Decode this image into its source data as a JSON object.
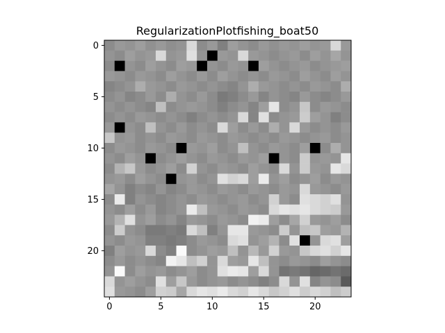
{
  "chart_data": {
    "type": "heatmap",
    "title": "RegularizationPlotfishing_boat50",
    "xlabel": "",
    "ylabel": "",
    "colormap": "gray",
    "rows": 25,
    "cols": 24,
    "xlim": [
      -0.5,
      23.5
    ],
    "ylim": [
      24.5,
      -0.5
    ],
    "x_ticks": [
      0,
      5,
      10,
      15,
      20
    ],
    "y_ticks": [
      0,
      5,
      10,
      15,
      20
    ],
    "grid": false,
    "values": [
      [
        0.55,
        0.6,
        0.58,
        0.62,
        0.57,
        0.6,
        0.56,
        0.58,
        0.85,
        0.55,
        0.6,
        0.5,
        0.62,
        0.58,
        0.55,
        0.6,
        0.57,
        0.6,
        0.58,
        0.62,
        0.58,
        0.6,
        0.85,
        0.6
      ],
      [
        0.58,
        0.55,
        0.62,
        0.58,
        0.6,
        0.85,
        0.58,
        0.6,
        0.88,
        0.58,
        0.0,
        0.6,
        0.58,
        0.85,
        0.6,
        0.58,
        0.55,
        0.58,
        0.6,
        0.55,
        0.62,
        0.58,
        0.65,
        0.58
      ],
      [
        0.55,
        0.0,
        0.58,
        0.55,
        0.62,
        0.58,
        0.55,
        0.62,
        0.6,
        0.0,
        0.58,
        0.55,
        0.6,
        0.58,
        0.0,
        0.62,
        0.58,
        0.55,
        0.58,
        0.6,
        0.55,
        0.58,
        0.6,
        0.62
      ],
      [
        0.6,
        0.58,
        0.55,
        0.6,
        0.58,
        0.55,
        0.62,
        0.58,
        0.55,
        0.6,
        0.55,
        0.62,
        0.58,
        0.55,
        0.58,
        0.55,
        0.6,
        0.58,
        0.55,
        0.62,
        0.58,
        0.55,
        0.62,
        0.58
      ],
      [
        0.52,
        0.55,
        0.58,
        0.68,
        0.6,
        0.58,
        0.55,
        0.6,
        0.58,
        0.55,
        0.58,
        0.55,
        0.52,
        0.58,
        0.68,
        0.6,
        0.58,
        0.55,
        0.58,
        0.55,
        0.6,
        0.58,
        0.55,
        0.68
      ],
      [
        0.55,
        0.58,
        0.52,
        0.55,
        0.6,
        0.55,
        0.68,
        0.58,
        0.55,
        0.6,
        0.55,
        0.48,
        0.5,
        0.55,
        0.6,
        0.52,
        0.58,
        0.55,
        0.52,
        0.6,
        0.55,
        0.52,
        0.55,
        0.6
      ],
      [
        0.58,
        0.55,
        0.58,
        0.55,
        0.52,
        0.75,
        0.55,
        0.58,
        0.6,
        0.58,
        0.55,
        0.5,
        0.55,
        0.58,
        0.52,
        0.62,
        0.9,
        0.55,
        0.58,
        0.78,
        0.55,
        0.6,
        0.58,
        0.55
      ],
      [
        0.55,
        0.58,
        0.55,
        0.6,
        0.58,
        0.55,
        0.58,
        0.55,
        0.5,
        0.55,
        0.58,
        0.55,
        0.58,
        0.85,
        0.52,
        0.88,
        0.55,
        0.58,
        0.6,
        0.8,
        0.62,
        0.58,
        0.5,
        0.55
      ],
      [
        0.6,
        0.0,
        0.58,
        0.55,
        0.75,
        0.58,
        0.55,
        0.6,
        0.55,
        0.58,
        0.55,
        0.85,
        0.62,
        0.55,
        0.6,
        0.55,
        0.68,
        0.58,
        0.85,
        0.6,
        0.55,
        0.58,
        0.55,
        0.6
      ],
      [
        0.78,
        0.58,
        0.6,
        0.55,
        0.58,
        0.55,
        0.6,
        0.58,
        0.55,
        0.6,
        0.58,
        0.55,
        0.6,
        0.58,
        0.55,
        0.58,
        0.55,
        0.6,
        0.58,
        0.55,
        0.58,
        0.6,
        0.55,
        0.58
      ],
      [
        0.55,
        0.6,
        0.58,
        0.55,
        0.6,
        0.58,
        0.55,
        0.0,
        0.6,
        0.58,
        0.62,
        0.55,
        0.58,
        0.75,
        0.58,
        0.55,
        0.6,
        0.58,
        0.55,
        0.62,
        0.0,
        0.55,
        0.68,
        0.58
      ],
      [
        0.58,
        0.55,
        0.62,
        0.58,
        0.0,
        0.55,
        0.58,
        0.62,
        0.58,
        0.55,
        0.6,
        0.58,
        0.55,
        0.6,
        0.58,
        0.62,
        0.0,
        0.58,
        0.55,
        0.8,
        0.58,
        0.6,
        0.58,
        0.9
      ],
      [
        0.55,
        0.7,
        0.78,
        0.6,
        0.55,
        0.58,
        0.62,
        0.55,
        0.82,
        0.58,
        0.55,
        0.6,
        0.58,
        0.55,
        0.62,
        0.58,
        0.55,
        0.85,
        0.58,
        0.8,
        0.6,
        0.58,
        0.9,
        0.85
      ],
      [
        0.58,
        0.6,
        0.55,
        0.62,
        0.58,
        0.55,
        0.0,
        0.58,
        0.6,
        0.55,
        0.58,
        0.88,
        0.82,
        0.85,
        0.62,
        0.92,
        0.58,
        0.62,
        0.55,
        0.58,
        0.62,
        0.55,
        0.6,
        0.58
      ],
      [
        0.65,
        0.58,
        0.5,
        0.55,
        0.52,
        0.58,
        0.52,
        0.55,
        0.6,
        0.58,
        0.55,
        0.6,
        0.58,
        0.55,
        0.6,
        0.58,
        0.55,
        0.6,
        0.58,
        0.85,
        0.6,
        0.58,
        0.55,
        0.6
      ],
      [
        0.55,
        0.92,
        0.5,
        0.58,
        0.55,
        0.52,
        0.55,
        0.58,
        0.55,
        0.6,
        0.58,
        0.55,
        0.58,
        0.6,
        0.55,
        0.58,
        0.82,
        0.6,
        0.55,
        0.88,
        0.85,
        0.82,
        0.88,
        0.58
      ],
      [
        0.58,
        0.55,
        0.62,
        0.55,
        0.6,
        0.52,
        0.55,
        0.58,
        0.92,
        0.75,
        0.6,
        0.58,
        0.55,
        0.6,
        0.58,
        0.55,
        0.85,
        0.9,
        0.88,
        0.9,
        0.85,
        0.82,
        0.8,
        0.6
      ],
      [
        0.6,
        0.7,
        0.88,
        0.58,
        0.62,
        0.55,
        0.58,
        0.52,
        0.6,
        0.58,
        0.55,
        0.6,
        0.58,
        0.55,
        0.95,
        0.92,
        0.62,
        0.55,
        0.65,
        0.82,
        0.6,
        0.58,
        0.62,
        0.55
      ],
      [
        0.55,
        0.8,
        0.58,
        0.55,
        0.48,
        0.48,
        0.5,
        0.48,
        0.85,
        0.75,
        0.5,
        0.58,
        0.9,
        0.9,
        0.6,
        0.58,
        0.55,
        0.8,
        0.58,
        0.75,
        0.78,
        0.62,
        0.6,
        0.7
      ],
      [
        0.58,
        0.55,
        0.6,
        0.58,
        0.5,
        0.5,
        0.48,
        0.5,
        0.55,
        0.6,
        0.58,
        0.55,
        0.85,
        0.88,
        0.58,
        0.62,
        0.7,
        0.55,
        0.88,
        0.0,
        0.58,
        0.85,
        0.88,
        0.62
      ],
      [
        0.5,
        0.62,
        0.58,
        0.6,
        0.85,
        0.55,
        0.5,
        0.98,
        0.55,
        0.58,
        0.62,
        0.6,
        0.75,
        0.58,
        0.72,
        0.6,
        0.82,
        0.6,
        0.58,
        0.78,
        0.85,
        0.88,
        0.82,
        0.9
      ],
      [
        0.55,
        0.6,
        0.55,
        0.58,
        0.55,
        0.52,
        0.95,
        0.9,
        0.75,
        0.82,
        0.58,
        0.85,
        0.62,
        0.6,
        0.9,
        0.75,
        0.58,
        0.55,
        0.6,
        0.58,
        0.55,
        0.62,
        0.58,
        0.55
      ],
      [
        0.58,
        0.98,
        0.55,
        0.62,
        0.58,
        0.6,
        0.55,
        0.58,
        0.62,
        0.55,
        0.58,
        0.88,
        0.92,
        0.9,
        0.62,
        0.85,
        0.58,
        0.45,
        0.48,
        0.45,
        0.4,
        0.42,
        0.45,
        0.42
      ],
      [
        0.85,
        0.58,
        0.62,
        0.58,
        0.55,
        0.88,
        0.62,
        0.78,
        0.6,
        0.55,
        0.58,
        0.6,
        0.55,
        0.58,
        0.55,
        0.5,
        0.55,
        0.85,
        0.58,
        0.88,
        0.52,
        0.58,
        0.55,
        0.35
      ],
      [
        0.88,
        0.6,
        0.58,
        0.55,
        0.62,
        0.82,
        0.8,
        0.65,
        0.85,
        0.9,
        0.88,
        0.92,
        0.85,
        0.82,
        0.9,
        0.85,
        0.78,
        0.82,
        0.88,
        0.8,
        0.85,
        0.82,
        0.75,
        0.8
      ]
    ]
  }
}
